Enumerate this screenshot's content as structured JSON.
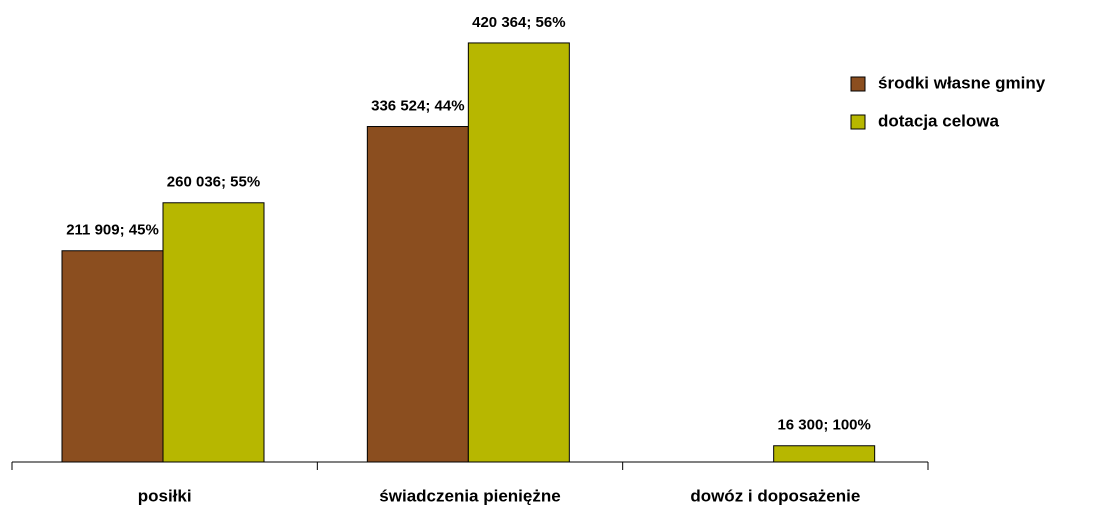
{
  "chart_data": {
    "type": "bar",
    "categories": [
      "posiłki",
      "świadczenia pieniężne",
      "dowóz i doposażenie"
    ],
    "series": [
      {
        "name": "środki własne gminy",
        "color": "#8b4e1f",
        "values": [
          211909,
          336524,
          null
        ],
        "value_labels": [
          "211 909; 45%",
          "336 524; 44%",
          null
        ]
      },
      {
        "name": "dotacja celowa",
        "color": "#b7b700",
        "values": [
          260036,
          420364,
          16300
        ],
        "value_labels": [
          "260 036; 55%",
          "420 364; 56%",
          "16 300; 100%"
        ]
      }
    ],
    "ylim": [
      0,
      450000
    ]
  }
}
